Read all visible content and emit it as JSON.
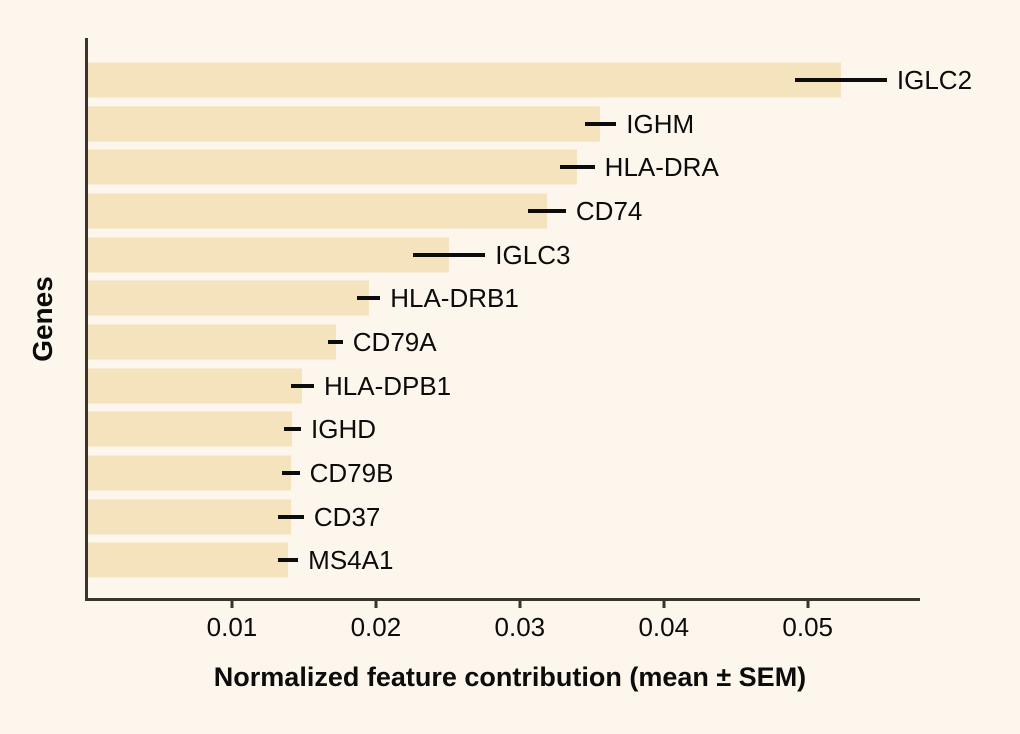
{
  "figure": {
    "background_color": "#fcf6ed",
    "bar_color": "#f5e3bd",
    "axis_color": "#3a352e",
    "text_color": "#0c0c0c",
    "error_bar_color": "#0c0c0c"
  },
  "chart_data": {
    "type": "bar",
    "orientation": "horizontal",
    "title": "",
    "xlabel": "Normalized feature contribution (mean ± SEM)",
    "ylabel": "Genes",
    "xlim": [
      0,
      0.0578
    ],
    "x_ticks": [
      0.01,
      0.02,
      0.03,
      0.04,
      0.05
    ],
    "x_tick_labels": [
      "0.01",
      "0.02",
      "0.03",
      "0.04",
      "0.05"
    ],
    "grid": false,
    "legend": false,
    "error_bar_type": "SEM",
    "categories": [
      "IGLC2",
      "IGHM",
      "HLA-DRA",
      "CD74",
      "IGLC3",
      "HLA-DRB1",
      "CD79A",
      "HLA-DPB1",
      "IGHD",
      "CD79B",
      "CD37",
      "MS4A1"
    ],
    "values": [
      0.0523,
      0.0356,
      0.034,
      0.0319,
      0.0251,
      0.0195,
      0.0172,
      0.0149,
      0.0142,
      0.0141,
      0.0141,
      0.0139
    ],
    "sem": [
      0.0032,
      0.0011,
      0.0012,
      0.0013,
      0.0025,
      0.0008,
      0.0005,
      0.0008,
      0.0006,
      0.0006,
      0.0009,
      0.0007
    ]
  }
}
